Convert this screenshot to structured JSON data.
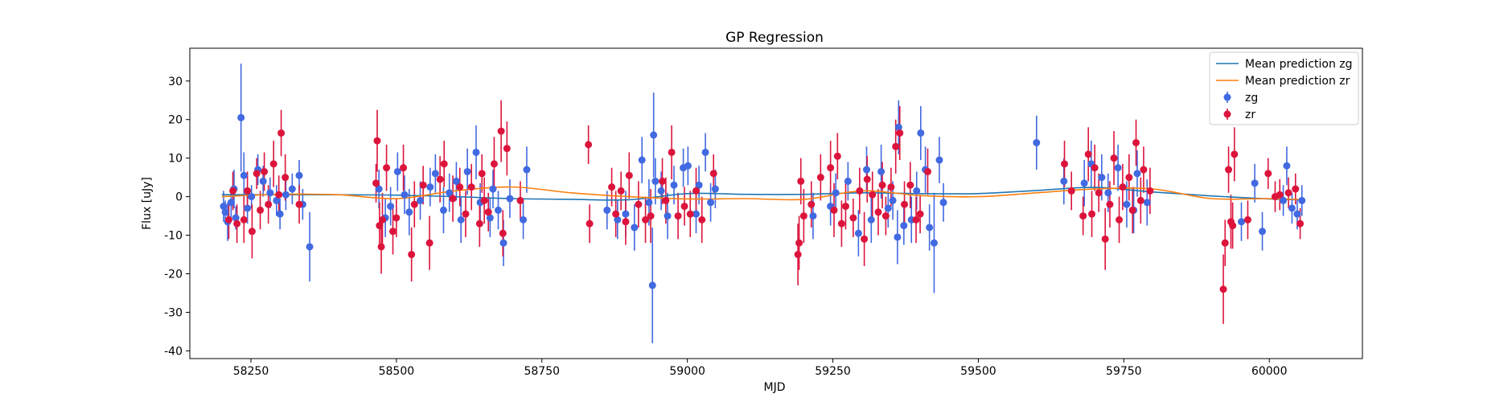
{
  "chart_data": {
    "type": "scatter",
    "title": "GP Regression",
    "xlabel": "MJD",
    "ylabel": "Flux [uJy]",
    "xlim": [
      58145,
      60160
    ],
    "ylim": [
      -42,
      38.5
    ],
    "x_ticks": [
      58250,
      58500,
      58750,
      59000,
      59250,
      59500,
      59750,
      60000
    ],
    "y_ticks": [
      -40,
      -30,
      -20,
      -10,
      0,
      10,
      20,
      30
    ],
    "legend_position": "top-right",
    "mean_predictions": [
      {
        "name": "Mean prediction zg",
        "color": "#1f77b4",
        "x": [
          58200,
          58300,
          58400,
          58500,
          58600,
          58700,
          58800,
          58900,
          59000,
          59100,
          59200,
          59300,
          59400,
          59500,
          59600,
          59700,
          59800,
          59900,
          60000,
          60060
        ],
        "y": [
          0.5,
          0.5,
          0.5,
          0.4,
          0.0,
          -0.5,
          -0.7,
          -0.8,
          0.8,
          0.6,
          0.6,
          1.0,
          0.8,
          0.8,
          1.6,
          2.4,
          1.2,
          0.2,
          -0.6,
          -0.8
        ]
      },
      {
        "name": "Mean prediction zr",
        "color": "#ff7f0e",
        "x": [
          58200,
          58300,
          58400,
          58500,
          58600,
          58700,
          58800,
          58900,
          59000,
          59100,
          59200,
          59300,
          59400,
          59500,
          59600,
          59700,
          59800,
          59900,
          60000,
          60060
        ],
        "y": [
          0.0,
          0.6,
          0.5,
          -0.5,
          1.5,
          2.5,
          1.0,
          0.0,
          -0.6,
          -0.5,
          -0.7,
          1.5,
          0.3,
          0.0,
          1.0,
          2.0,
          2.0,
          -0.5,
          -0.5,
          -0.8
        ]
      }
    ],
    "series": [
      {
        "name": "zg",
        "color": "#4169e1",
        "points": [
          [
            58203,
            -2.5,
            4
          ],
          [
            58206,
            -4.0,
            3
          ],
          [
            58210,
            -6.5,
            5
          ],
          [
            58216,
            -1.5,
            4
          ],
          [
            58221,
            2.0,
            5
          ],
          [
            58224,
            -5.5,
            3
          ],
          [
            58233,
            20.5,
            14
          ],
          [
            58238,
            5.5,
            6
          ],
          [
            58244,
            -3.0,
            4
          ],
          [
            58251,
            0.0,
            3
          ],
          [
            58262,
            7.0,
            4
          ],
          [
            58271,
            4.0,
            4
          ],
          [
            58283,
            1.0,
            4
          ],
          [
            58294,
            -1.0,
            4
          ],
          [
            58300,
            -4.5,
            4
          ],
          [
            58310,
            0.5,
            4
          ],
          [
            58321,
            2.0,
            4
          ],
          [
            58333,
            5.5,
            4
          ],
          [
            58339,
            -2.0,
            4
          ],
          [
            58351,
            -13.0,
            9
          ],
          [
            58470,
            2.0,
            5
          ],
          [
            58481,
            -5.5,
            5
          ],
          [
            58490,
            -2.5,
            5
          ],
          [
            58502,
            6.5,
            5
          ],
          [
            58514,
            0.5,
            5
          ],
          [
            58522,
            -4.0,
            6
          ],
          [
            58541,
            -1.0,
            5
          ],
          [
            58558,
            2.5,
            5
          ],
          [
            58567,
            6.0,
            5
          ],
          [
            58581,
            -3.5,
            6
          ],
          [
            58591,
            1.0,
            5
          ],
          [
            58603,
            4.0,
            5
          ],
          [
            58611,
            -6.0,
            6
          ],
          [
            58622,
            6.5,
            6
          ],
          [
            58637,
            11.5,
            7
          ],
          [
            58644,
            -1.5,
            5
          ],
          [
            58661,
            -5.5,
            5
          ],
          [
            58666,
            2.0,
            5
          ],
          [
            58675,
            -3.5,
            5
          ],
          [
            58684,
            -12.0,
            6
          ],
          [
            58695,
            -0.5,
            5
          ],
          [
            58718,
            -6.0,
            5
          ],
          [
            58724,
            7.0,
            6
          ],
          [
            58862,
            -3.5,
            5
          ],
          [
            58880,
            -6.0,
            5
          ],
          [
            58894,
            -4.5,
            6
          ],
          [
            58909,
            -8.0,
            6
          ],
          [
            58922,
            9.5,
            6
          ],
          [
            58934,
            -1.5,
            6
          ],
          [
            58940,
            -23.0,
            15
          ],
          [
            58942,
            16.0,
            11
          ],
          [
            58945,
            4.0,
            6
          ],
          [
            58955,
            1.5,
            5
          ],
          [
            58966,
            -5.0,
            6
          ],
          [
            58977,
            3.0,
            5
          ],
          [
            58993,
            7.5,
            5
          ],
          [
            59001,
            8.0,
            5
          ],
          [
            59015,
            -4.5,
            5
          ],
          [
            59020,
            3.0,
            5
          ],
          [
            59031,
            11.5,
            5
          ],
          [
            59040,
            -1.5,
            5
          ],
          [
            59048,
            2.0,
            5
          ],
          [
            59216,
            -5.0,
            6
          ],
          [
            59246,
            -2.5,
            5
          ],
          [
            59255,
            1.0,
            5
          ],
          [
            59276,
            4.0,
            5
          ],
          [
            59294,
            -9.5,
            6
          ],
          [
            59308,
            7.0,
            6
          ],
          [
            59316,
            -6.0,
            6
          ],
          [
            59333,
            6.5,
            7
          ],
          [
            59345,
            -3.0,
            5
          ],
          [
            59353,
            -1.0,
            5
          ],
          [
            59361,
            -10.5,
            7
          ],
          [
            59363,
            18.0,
            7
          ],
          [
            59372,
            -7.5,
            5
          ],
          [
            59385,
            -6.0,
            6
          ],
          [
            59394,
            1.5,
            5
          ],
          [
            59401,
            16.5,
            7
          ],
          [
            59409,
            7.0,
            6
          ],
          [
            59416,
            -8.0,
            6
          ],
          [
            59424,
            -12.0,
            13
          ],
          [
            59433,
            9.5,
            6
          ],
          [
            59440,
            -1.5,
            5
          ],
          [
            59600,
            14.0,
            7
          ],
          [
            59647,
            4.0,
            6
          ],
          [
            59682,
            3.5,
            6
          ],
          [
            59694,
            8.5,
            6
          ],
          [
            59712,
            5.0,
            6
          ],
          [
            59723,
            1.0,
            5
          ],
          [
            59740,
            7.5,
            6
          ],
          [
            59755,
            -2.0,
            6
          ],
          [
            59767,
            -3.5,
            6
          ],
          [
            59773,
            6.0,
            6
          ],
          [
            59790,
            -1.5,
            6
          ],
          [
            59952,
            -6.5,
            5
          ],
          [
            59975,
            3.5,
            5
          ],
          [
            59988,
            -9.0,
            5
          ],
          [
            60024,
            -1.0,
            4
          ],
          [
            60030,
            8.0,
            5
          ],
          [
            60039,
            -3.0,
            4
          ],
          [
            60048,
            -4.5,
            4
          ],
          [
            60056,
            -1.0,
            4
          ]
        ]
      },
      {
        "name": "zr",
        "color": "#dc143c",
        "points": [
          [
            58212,
            -6.0,
            5
          ],
          [
            58219,
            1.5,
            5
          ],
          [
            58226,
            -7.0,
            5
          ],
          [
            58238,
            -6.0,
            6
          ],
          [
            58244,
            1.5,
            5
          ],
          [
            58252,
            -9.0,
            7
          ],
          [
            58260,
            6.0,
            4
          ],
          [
            58266,
            -3.5,
            5
          ],
          [
            58273,
            6.5,
            5
          ],
          [
            58280,
            -2.0,
            5
          ],
          [
            58289,
            8.5,
            6
          ],
          [
            58298,
            0.5,
            5
          ],
          [
            58302,
            16.5,
            6
          ],
          [
            58309,
            5.0,
            6
          ],
          [
            58333,
            -2.0,
            5
          ],
          [
            58465,
            3.5,
            5
          ],
          [
            58467,
            14.5,
            8
          ],
          [
            58471,
            -7.5,
            6
          ],
          [
            58474,
            -13.0,
            7
          ],
          [
            58476,
            -6.0,
            7
          ],
          [
            58483,
            7.5,
            6
          ],
          [
            58494,
            -9.0,
            6
          ],
          [
            58500,
            -5.5,
            5
          ],
          [
            58512,
            7.5,
            6
          ],
          [
            58526,
            -15.0,
            7
          ],
          [
            58531,
            -2.0,
            6
          ],
          [
            58546,
            3.0,
            5
          ],
          [
            58557,
            -12.0,
            7
          ],
          [
            58575,
            4.5,
            6
          ],
          [
            58582,
            8.5,
            6
          ],
          [
            58597,
            -0.5,
            6
          ],
          [
            58609,
            2.5,
            5
          ],
          [
            58619,
            -4.5,
            6
          ],
          [
            58629,
            2.5,
            6
          ],
          [
            58643,
            -7.0,
            6
          ],
          [
            58647,
            6.0,
            5
          ],
          [
            58651,
            -1.0,
            6
          ],
          [
            58658,
            -4.0,
            5
          ],
          [
            58668,
            8.5,
            7
          ],
          [
            58680,
            17.0,
            8
          ],
          [
            58683,
            -9.5,
            6
          ],
          [
            58690,
            12.5,
            7
          ],
          [
            58713,
            -1.0,
            5
          ],
          [
            58830,
            13.5,
            5
          ],
          [
            58832,
            -7.0,
            5
          ],
          [
            58870,
            2.5,
            5
          ],
          [
            58877,
            -4.5,
            6
          ],
          [
            58886,
            1.5,
            5
          ],
          [
            58894,
            -6.5,
            6
          ],
          [
            58900,
            5.5,
            6
          ],
          [
            58916,
            -2.0,
            6
          ],
          [
            58928,
            -6.0,
            6
          ],
          [
            58937,
            -5.0,
            7
          ],
          [
            58957,
            4.0,
            6
          ],
          [
            58963,
            -1.0,
            6
          ],
          [
            58973,
            11.5,
            7
          ],
          [
            58984,
            -5.0,
            6
          ],
          [
            58995,
            -2.5,
            5
          ],
          [
            59005,
            -4.5,
            6
          ],
          [
            59015,
            1.5,
            6
          ],
          [
            59025,
            -6.0,
            6
          ],
          [
            59045,
            6.0,
            5
          ],
          [
            59190,
            -15.0,
            8
          ],
          [
            59192,
            -12.0,
            7
          ],
          [
            59195,
            4.0,
            6
          ],
          [
            59200,
            -5.0,
            7
          ],
          [
            59213,
            -2.0,
            6
          ],
          [
            59229,
            5.0,
            6
          ],
          [
            59246,
            7.5,
            7
          ],
          [
            59252,
            -3.5,
            7
          ],
          [
            59258,
            10.5,
            6
          ],
          [
            59265,
            -7.0,
            6
          ],
          [
            59272,
            -2.5,
            6
          ],
          [
            59285,
            -5.5,
            5
          ],
          [
            59296,
            1.5,
            6
          ],
          [
            59304,
            -11.0,
            7
          ],
          [
            59309,
            4.5,
            6
          ],
          [
            59318,
            0.5,
            6
          ],
          [
            59328,
            -4.0,
            6
          ],
          [
            59335,
            3.0,
            6
          ],
          [
            59341,
            -5.0,
            5
          ],
          [
            59350,
            2.5,
            5
          ],
          [
            59358,
            13.0,
            7
          ],
          [
            59365,
            16.5,
            7
          ],
          [
            59373,
            -2.0,
            6
          ],
          [
            59383,
            3.0,
            6
          ],
          [
            59393,
            -6.0,
            6
          ],
          [
            59400,
            -4.5,
            5
          ],
          [
            59413,
            6.5,
            6
          ],
          [
            59648,
            8.5,
            6
          ],
          [
            59660,
            1.5,
            5
          ],
          [
            59680,
            -5.0,
            5
          ],
          [
            59689,
            11.0,
            7
          ],
          [
            59695,
            -4.5,
            6
          ],
          [
            59700,
            7.5,
            6
          ],
          [
            59707,
            1.0,
            5
          ],
          [
            59718,
            -11.0,
            8
          ],
          [
            59726,
            -2.0,
            6
          ],
          [
            59733,
            10.0,
            7
          ],
          [
            59742,
            -6.0,
            6
          ],
          [
            59748,
            2.5,
            6
          ],
          [
            59759,
            5.0,
            6
          ],
          [
            59765,
            -3.5,
            6
          ],
          [
            59771,
            14.0,
            6
          ],
          [
            59779,
            -1.0,
            6
          ],
          [
            59784,
            7.0,
            6
          ],
          [
            59795,
            1.5,
            6
          ],
          [
            59921,
            -24.0,
            9
          ],
          [
            59924,
            -12.0,
            6
          ],
          [
            59930,
            7.0,
            6
          ],
          [
            59934,
            -6.5,
            7
          ],
          [
            59937,
            -7.5,
            6
          ],
          [
            59940,
            11.0,
            7
          ],
          [
            59963,
            -6.0,
            5
          ],
          [
            59998,
            6.0,
            4
          ],
          [
            60010,
            0.0,
            4
          ],
          [
            60018,
            0.5,
            4
          ],
          [
            60033,
            1.0,
            4
          ],
          [
            60045,
            2.0,
            4
          ],
          [
            60053,
            -7.0,
            4
          ]
        ]
      }
    ]
  }
}
